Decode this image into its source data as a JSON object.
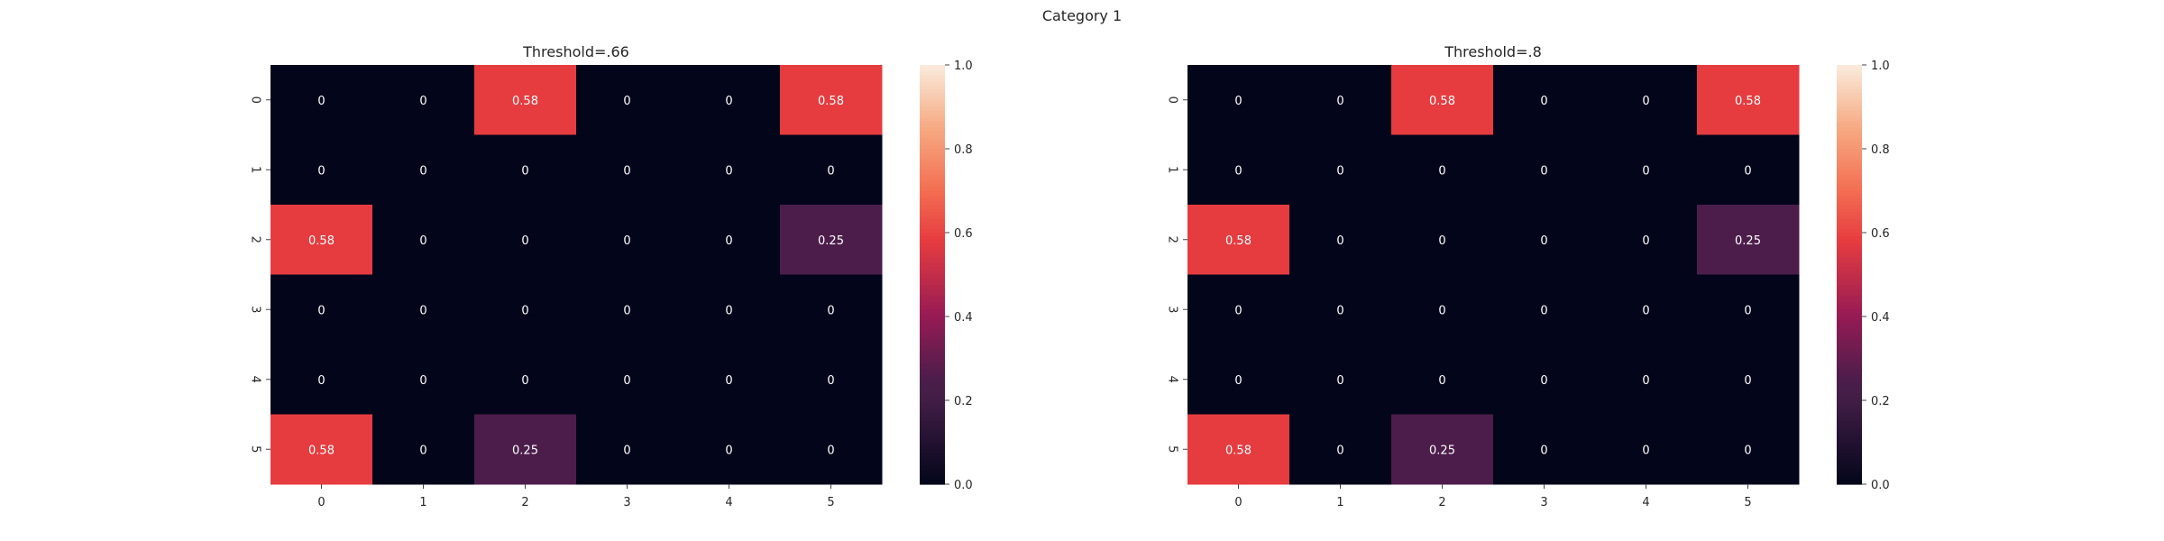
{
  "figure": {
    "title": "Category 1"
  },
  "chart_data": [
    {
      "type": "heatmap",
      "title": "Threshold=.66",
      "xlabel": "",
      "ylabel": "",
      "x_ticks": [
        "0",
        "1",
        "2",
        "3",
        "4",
        "5"
      ],
      "y_ticks": [
        "0",
        "1",
        "2",
        "3",
        "4",
        "5"
      ],
      "values": [
        [
          0,
          0,
          0.58,
          0,
          0,
          0.58
        ],
        [
          0,
          0,
          0,
          0,
          0,
          0
        ],
        [
          0.58,
          0,
          0,
          0,
          0,
          0.25
        ],
        [
          0,
          0,
          0,
          0,
          0,
          0
        ],
        [
          0,
          0,
          0,
          0,
          0,
          0
        ],
        [
          0.58,
          0,
          0.25,
          0,
          0,
          0
        ]
      ],
      "colorbar": {
        "range": [
          0,
          1
        ],
        "ticks": [
          "0.0",
          "0.2",
          "0.4",
          "0.6",
          "0.8",
          "1.0"
        ],
        "colormap": "rocket"
      },
      "annotation_color": "#ffffff"
    },
    {
      "type": "heatmap",
      "title": "Threshold=.8",
      "xlabel": "",
      "ylabel": "",
      "x_ticks": [
        "0",
        "1",
        "2",
        "3",
        "4",
        "5"
      ],
      "y_ticks": [
        "0",
        "1",
        "2",
        "3",
        "4",
        "5"
      ],
      "values": [
        [
          0,
          0,
          0.58,
          0,
          0,
          0.58
        ],
        [
          0,
          0,
          0,
          0,
          0,
          0
        ],
        [
          0.58,
          0,
          0,
          0,
          0,
          0.25
        ],
        [
          0,
          0,
          0,
          0,
          0,
          0
        ],
        [
          0,
          0,
          0,
          0,
          0,
          0
        ],
        [
          0.58,
          0,
          0.25,
          0,
          0,
          0
        ]
      ],
      "colorbar": {
        "range": [
          0,
          1
        ],
        "ticks": [
          "0.0",
          "0.2",
          "0.4",
          "0.6",
          "0.8",
          "1.0"
        ],
        "colormap": "rocket"
      },
      "annotation_color": "#ffffff"
    }
  ]
}
